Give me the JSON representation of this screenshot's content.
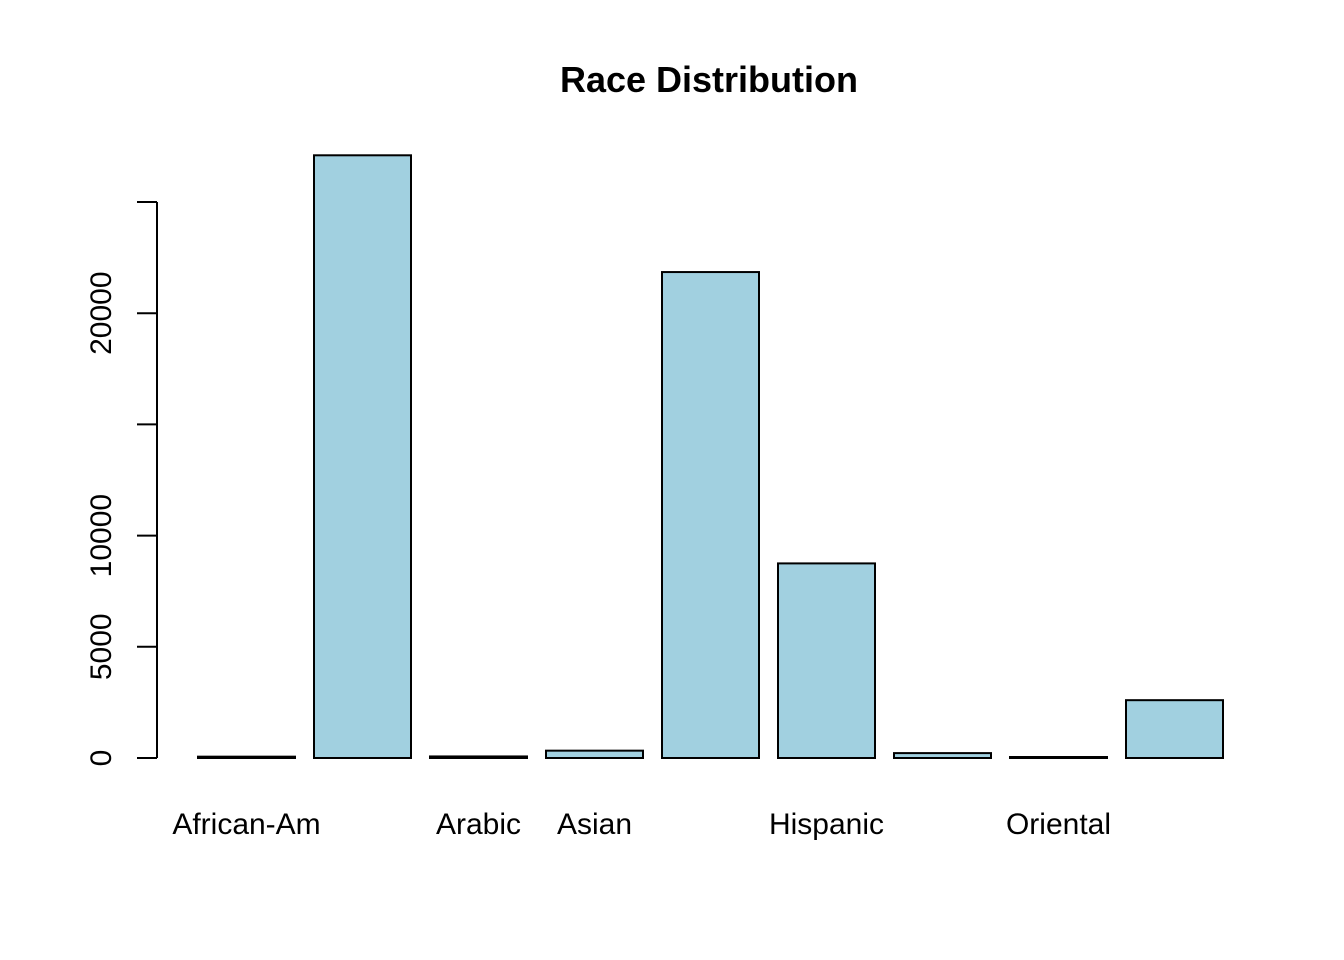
{
  "chart_data": {
    "type": "bar",
    "title": "Race Distribution",
    "xlabel": "",
    "ylabel": "",
    "categories": [
      "African-Am",
      "",
      "Arabic",
      "Asian",
      "",
      "Hispanic",
      "",
      "Oriental",
      ""
    ],
    "values": [
      60,
      27100,
      70,
      330,
      21850,
      8750,
      220,
      40,
      2600
    ],
    "ylim": [
      0,
      27100
    ],
    "yticks": [
      0,
      5000,
      10000,
      15000,
      20000,
      25000
    ],
    "ytick_labels": [
      "0",
      "5000",
      "10000",
      "",
      "20000",
      ""
    ],
    "bar_color": "#a1d0e0",
    "grid": false,
    "legend": "none"
  }
}
